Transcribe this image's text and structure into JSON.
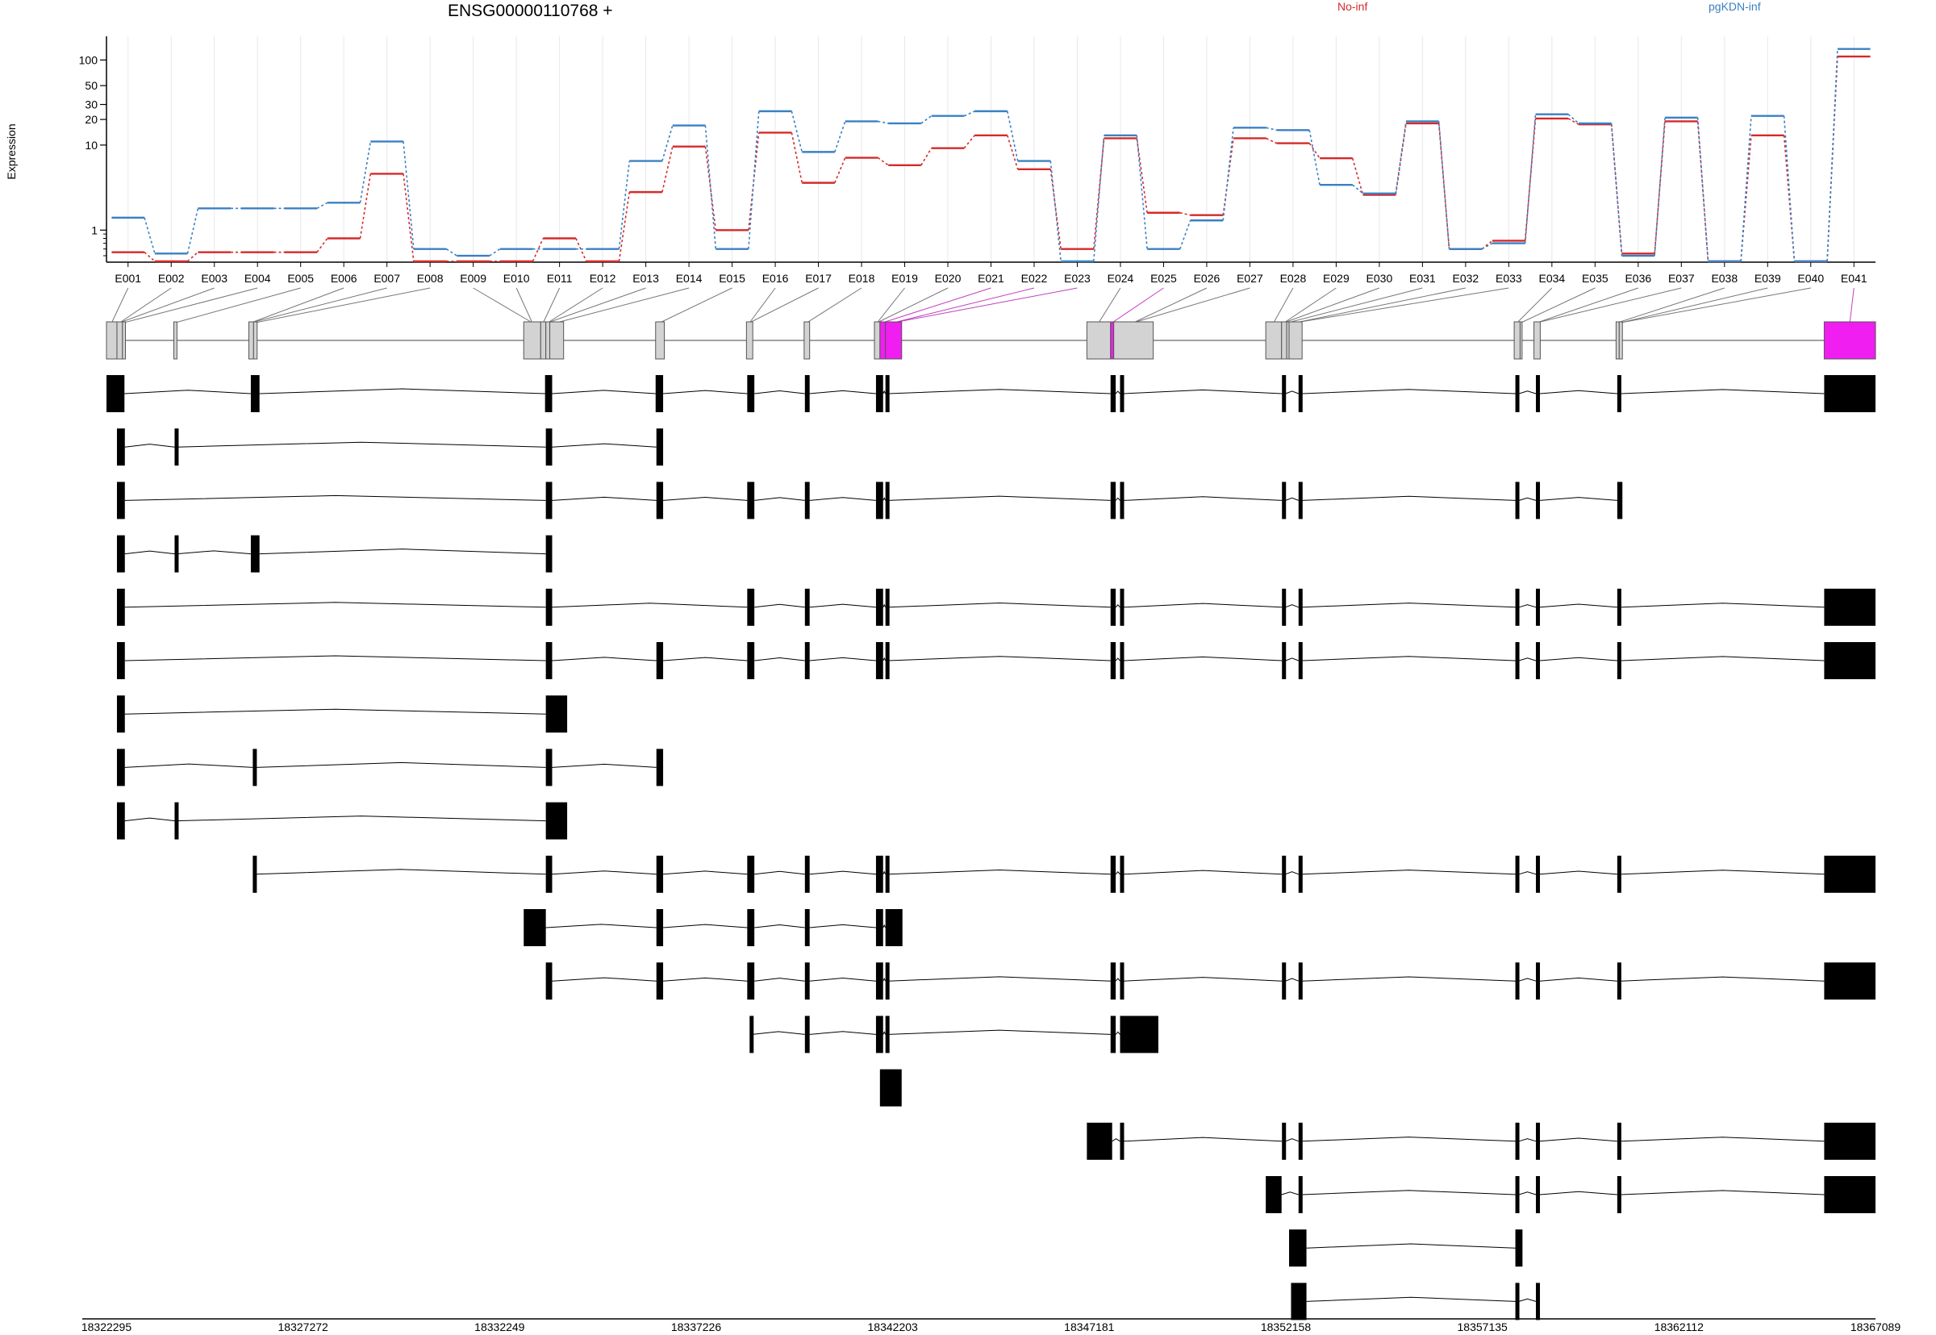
{
  "chart_data": {
    "type": "line",
    "title": "ENSG00000110768 +",
    "ylabel": "Expression",
    "xlabel": "",
    "yscale": "log",
    "ylim": [
      0.42,
      190
    ],
    "yticks": [
      1,
      10,
      20,
      30,
      50,
      100
    ],
    "grid": "vertical dotted at exon bins",
    "legend_position": "top-right",
    "categories": [
      "E001",
      "E002",
      "E003",
      "E004",
      "E005",
      "E006",
      "E007",
      "E008",
      "E009",
      "E010",
      "E011",
      "E012",
      "E013",
      "E014",
      "E015",
      "E016",
      "E017",
      "E018",
      "E019",
      "E020",
      "E021",
      "E022",
      "E023",
      "E024",
      "E025",
      "E026",
      "E027",
      "E028",
      "E029",
      "E030",
      "E031",
      "E032",
      "E033",
      "E034",
      "E035",
      "E036",
      "E037",
      "E038",
      "E039",
      "E040",
      "E041"
    ],
    "series": [
      {
        "name": "No-inf",
        "color": "#d42a2a",
        "values": [
          0.55,
          0.43,
          0.55,
          0.55,
          0.55,
          0.8,
          4.6,
          0.43,
          0.43,
          0.43,
          0.8,
          0.43,
          2.8,
          9.6,
          1.0,
          14,
          3.6,
          7.1,
          5.8,
          9.2,
          13,
          5.2,
          0.6,
          12,
          1.6,
          1.5,
          12,
          10.5,
          7,
          2.6,
          18,
          0.6,
          0.75,
          20.5,
          17.5,
          0.53,
          19,
          0.43,
          13,
          0.43,
          110
        ]
      },
      {
        "name": "pgKDN-inf",
        "color": "#3b80c2",
        "values": [
          1.4,
          0.53,
          1.8,
          1.8,
          1.8,
          2.1,
          11,
          0.6,
          0.5,
          0.6,
          0.6,
          0.6,
          6.5,
          17,
          0.6,
          25,
          8.3,
          19,
          18,
          22,
          25,
          6.5,
          0.43,
          13,
          0.6,
          1.3,
          16,
          15,
          3.4,
          2.7,
          19,
          0.6,
          0.7,
          23,
          18,
          0.5,
          21,
          0.43,
          22,
          0.43,
          135
        ]
      }
    ],
    "genomic_axis_ticks": [
      "18322295",
      "18327272",
      "18332249",
      "18337226",
      "18342203",
      "18347181",
      "18352158",
      "18357135",
      "18362112",
      "18367089"
    ],
    "genomic_range": [
      18322295,
      18367089
    ],
    "highlight_color": "#f01ef0",
    "exon_blocks": [
      {
        "s": 18322295,
        "e": 18322560
      },
      {
        "s": 18322560,
        "e": 18322700
      },
      {
        "s": 18322700,
        "e": 18322775
      },
      {
        "s": 18324000,
        "e": 18324080
      },
      {
        "s": 18325900,
        "e": 18326020
      },
      {
        "s": 18326020,
        "e": 18326110
      },
      {
        "s": 18332860,
        "e": 18333290
      },
      {
        "s": 18333290,
        "e": 18333420
      },
      {
        "s": 18333420,
        "e": 18333520
      },
      {
        "s": 18333520,
        "e": 18333870
      },
      {
        "s": 18336200,
        "e": 18336420
      },
      {
        "s": 18338500,
        "e": 18338660
      },
      {
        "s": 18339960,
        "e": 18340100
      },
      {
        "s": 18341740,
        "e": 18341880
      },
      {
        "s": 18341880,
        "e": 18342020
      },
      {
        "s": 18342020,
        "e": 18342430
      },
      {
        "s": 18347120,
        "e": 18347720
      },
      {
        "s": 18347720,
        "e": 18347800
      },
      {
        "s": 18347800,
        "e": 18348800
      },
      {
        "s": 18351650,
        "e": 18352050
      },
      {
        "s": 18352050,
        "e": 18352180
      },
      {
        "s": 18352180,
        "e": 18352240
      },
      {
        "s": 18352240,
        "e": 18352570
      },
      {
        "s": 18357940,
        "e": 18358090
      },
      {
        "s": 18358090,
        "e": 18358140
      },
      {
        "s": 18358440,
        "e": 18358600
      },
      {
        "s": 18360520,
        "e": 18360600
      },
      {
        "s": 18360600,
        "e": 18360680
      },
      {
        "s": 18365790,
        "e": 18367089
      }
    ],
    "highlighted_blocks": [
      14,
      15,
      17,
      28
    ],
    "transcripts": [
      [
        [
          18322295,
          18322750
        ],
        [
          18325950,
          18326170
        ],
        [
          18333400,
          18333580
        ],
        [
          18336200,
          18336390
        ],
        [
          18338520,
          18338700
        ],
        [
          18339980,
          18340100
        ],
        [
          18341780,
          18341960
        ],
        [
          18342020,
          18342090
        ],
        [
          18347720,
          18347850
        ],
        [
          18347960,
          18348050
        ],
        [
          18352060,
          18352150
        ],
        [
          18352480,
          18352570
        ],
        [
          18357970,
          18358060
        ],
        [
          18358490,
          18358590
        ],
        [
          18360550,
          18360650
        ],
        [
          18365790,
          18367089
        ]
      ],
      [
        [
          18322560,
          18322760
        ],
        [
          18324020,
          18324080
        ],
        [
          18333420,
          18333580
        ],
        [
          18336220,
          18336390
        ]
      ],
      [
        [
          18322560,
          18322760
        ],
        [
          18333420,
          18333580
        ],
        [
          18336220,
          18336390
        ],
        [
          18338520,
          18338700
        ],
        [
          18339980,
          18340100
        ],
        [
          18341780,
          18341960
        ],
        [
          18342020,
          18342090
        ],
        [
          18347720,
          18347850
        ],
        [
          18347960,
          18348050
        ],
        [
          18352060,
          18352150
        ],
        [
          18352480,
          18352570
        ],
        [
          18357970,
          18358060
        ],
        [
          18358490,
          18358590
        ],
        [
          18360550,
          18360680
        ]
      ],
      [
        [
          18322560,
          18322760
        ],
        [
          18324020,
          18324080
        ],
        [
          18325950,
          18326170
        ],
        [
          18333420,
          18333580
        ]
      ],
      [
        [
          18322560,
          18322760
        ],
        [
          18333420,
          18333580
        ],
        [
          18338520,
          18338700
        ],
        [
          18339980,
          18340100
        ],
        [
          18341780,
          18341960
        ],
        [
          18342020,
          18342090
        ],
        [
          18347720,
          18347850
        ],
        [
          18347960,
          18348050
        ],
        [
          18352060,
          18352150
        ],
        [
          18352480,
          18352570
        ],
        [
          18357970,
          18358060
        ],
        [
          18358490,
          18358590
        ],
        [
          18360550,
          18360650
        ],
        [
          18365790,
          18367089
        ]
      ],
      [
        [
          18322560,
          18322760
        ],
        [
          18333420,
          18333580
        ],
        [
          18336220,
          18336390
        ],
        [
          18338520,
          18338700
        ],
        [
          18339980,
          18340100
        ],
        [
          18341780,
          18341960
        ],
        [
          18342020,
          18342090
        ],
        [
          18347720,
          18347850
        ],
        [
          18347960,
          18348050
        ],
        [
          18352060,
          18352150
        ],
        [
          18352480,
          18352570
        ],
        [
          18357970,
          18358060
        ],
        [
          18358490,
          18358590
        ],
        [
          18360550,
          18360650
        ],
        [
          18365790,
          18367089
        ]
      ],
      [
        [
          18322560,
          18322760
        ],
        [
          18333420,
          18333960
        ]
      ],
      [
        [
          18322560,
          18322760
        ],
        [
          18326000,
          18326080
        ],
        [
          18333420,
          18333580
        ],
        [
          18336220,
          18336390
        ]
      ],
      [
        [
          18322560,
          18322760
        ],
        [
          18324020,
          18324080
        ],
        [
          18333420,
          18333960
        ]
      ],
      [
        [
          18326000,
          18326060
        ],
        [
          18333420,
          18333580
        ],
        [
          18336220,
          18336390
        ],
        [
          18338520,
          18338700
        ],
        [
          18339980,
          18340100
        ],
        [
          18341780,
          18341960
        ],
        [
          18342020,
          18342090
        ],
        [
          18347720,
          18347850
        ],
        [
          18347960,
          18348050
        ],
        [
          18352060,
          18352150
        ],
        [
          18352480,
          18352570
        ],
        [
          18357970,
          18358060
        ],
        [
          18358490,
          18358590
        ],
        [
          18360550,
          18360650
        ],
        [
          18365790,
          18367089
        ]
      ],
      [
        [
          18332860,
          18333420
        ],
        [
          18336220,
          18336390
        ],
        [
          18338520,
          18338700
        ],
        [
          18339980,
          18340100
        ],
        [
          18341780,
          18341960
        ],
        [
          18342020,
          18342450
        ]
      ],
      [
        [
          18333420,
          18333580
        ],
        [
          18336220,
          18336390
        ],
        [
          18338520,
          18338700
        ],
        [
          18339980,
          18340100
        ],
        [
          18341780,
          18341960
        ],
        [
          18342020,
          18342090
        ],
        [
          18347720,
          18347850
        ],
        [
          18347960,
          18348050
        ],
        [
          18352060,
          18352150
        ],
        [
          18352480,
          18352570
        ],
        [
          18357970,
          18358060
        ],
        [
          18358490,
          18358590
        ],
        [
          18360550,
          18360650
        ],
        [
          18365790,
          18367089
        ]
      ],
      [
        [
          18338580,
          18338640
        ],
        [
          18339980,
          18340100
        ],
        [
          18341780,
          18341960
        ],
        [
          18342020,
          18342090
        ],
        [
          18347720,
          18347850
        ],
        [
          18347960,
          18348930
        ]
      ],
      [
        [
          18341880,
          18342430
        ]
      ],
      [
        [
          18347120,
          18347760
        ],
        [
          18347960,
          18348050
        ],
        [
          18352060,
          18352150
        ],
        [
          18352480,
          18352570
        ],
        [
          18357970,
          18358060
        ],
        [
          18358490,
          18358590
        ],
        [
          18360550,
          18360650
        ],
        [
          18365790,
          18367089
        ]
      ],
      [
        [
          18351650,
          18352050
        ],
        [
          18352480,
          18352570
        ],
        [
          18357970,
          18358060
        ],
        [
          18358490,
          18358590
        ],
        [
          18360550,
          18360650
        ],
        [
          18365790,
          18367089
        ]
      ],
      [
        [
          18352240,
          18352680
        ],
        [
          18357970,
          18358150
        ]
      ],
      [
        [
          18352290,
          18352680
        ],
        [
          18357970,
          18358060
        ],
        [
          18358490,
          18358590
        ]
      ]
    ]
  }
}
